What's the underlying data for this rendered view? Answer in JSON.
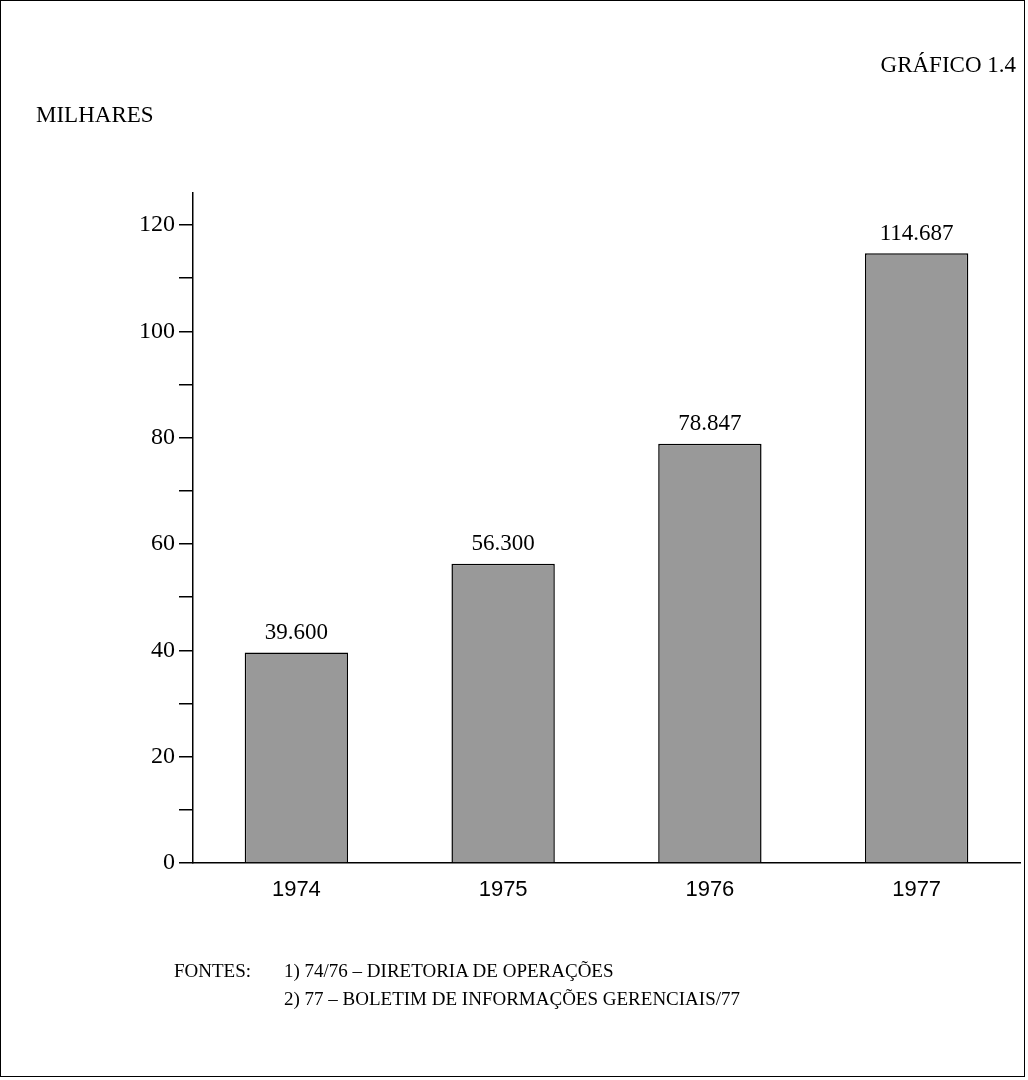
{
  "chart_data": {
    "type": "bar",
    "title": "GRÁFICO 1.4",
    "ylabel": "MILHARES",
    "categories": [
      "1974",
      "1975",
      "1976",
      "1977"
    ],
    "values": [
      39.6,
      56.3,
      78.847,
      114.687
    ],
    "value_labels": [
      "39.600",
      "56.300",
      "78.847",
      "114.687"
    ],
    "color": "#999999",
    "ylim": [
      0,
      126
    ],
    "yticks": [
      0,
      {
        "value": 10,
        "label": null
      },
      20,
      {
        "value": 30,
        "label": null
      },
      40,
      {
        "value": 50,
        "label": null
      },
      60,
      {
        "value": 70,
        "label": null
      },
      80,
      {
        "value": 90,
        "label": null
      },
      100,
      {
        "value": 110,
        "label": null
      },
      120
    ],
    "grid": false,
    "legend": false,
    "annotations": [
      "FONTES:",
      "1) 74/76 – DIRETORIA DE OPERAÇÕES",
      "2)  77 – BOLETIM DE INFORMAÇÕES GERENCIAIS/77"
    ]
  }
}
